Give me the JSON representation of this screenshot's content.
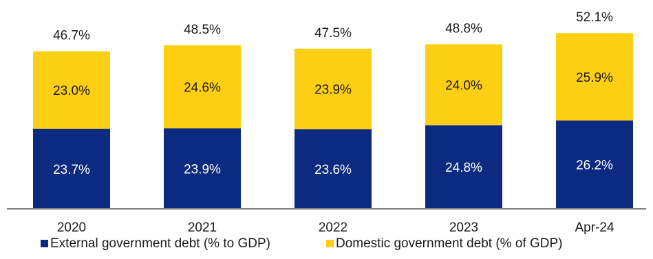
{
  "chart_data": {
    "type": "bar",
    "stacked": true,
    "categories": [
      "2020",
      "2021",
      "2022",
      "2023",
      "Apr-24"
    ],
    "series": [
      {
        "name": "External government debt (% to GDP)",
        "values": [
          23.7,
          23.9,
          23.6,
          24.8,
          26.2
        ],
        "labels": [
          "23.7%",
          "23.9%",
          "23.6%",
          "24.8%",
          "26.2%"
        ],
        "color": "#0c2a7f",
        "label_color": "#ffffff"
      },
      {
        "name": "Domestic government debt (% of GDP)",
        "values": [
          23.0,
          24.6,
          23.9,
          24.0,
          25.9
        ],
        "labels": [
          "23.0%",
          "24.6%",
          "23.9%",
          "24.0%",
          "25.9%"
        ],
        "color": "#fccf15",
        "label_color": "#1a1a1a"
      }
    ],
    "totals": [
      46.7,
      48.5,
      47.5,
      48.8,
      52.1
    ],
    "total_labels": [
      "46.7%",
      "48.5%",
      "47.5%",
      "48.8%",
      "52.1%"
    ],
    "ylim": [
      0,
      58
    ],
    "grid": false,
    "legend_position": "bottom"
  }
}
